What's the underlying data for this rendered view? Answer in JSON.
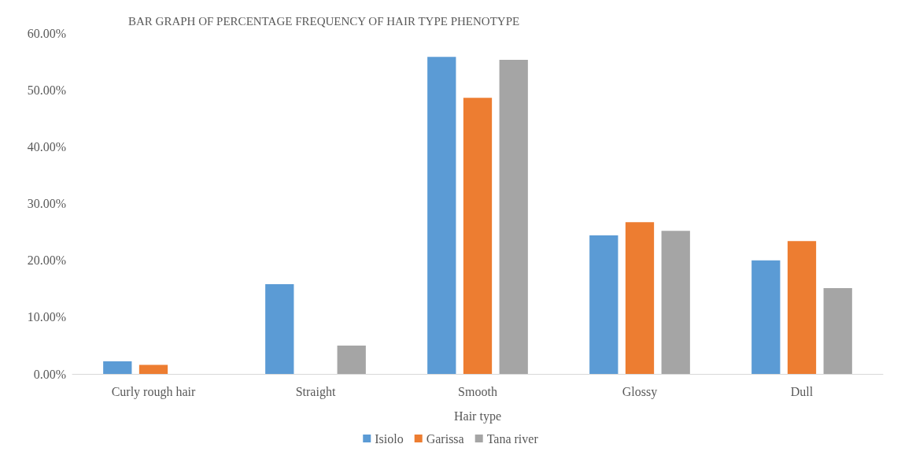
{
  "chart_data": {
    "type": "bar",
    "title": "BAR GRAPH OF PERCENTAGE FREQUENCY OF HAIR TYPE PHENOTYPE",
    "xlabel": "Hair type",
    "categories": [
      "Curly rough hair",
      "Straight",
      "Smooth",
      "Glossy",
      "Dull"
    ],
    "series": [
      {
        "name": "Isiolo",
        "color": "#5b9bd5",
        "values": [
          2.2,
          15.8,
          55.8,
          24.4,
          20.0
        ]
      },
      {
        "name": "Garissa",
        "color": "#ed7d31",
        "values": [
          1.6,
          0,
          48.6,
          26.7,
          23.4
        ]
      },
      {
        "name": "Tana river",
        "color": "#a5a5a5",
        "values": [
          0,
          5.0,
          55.3,
          25.2,
          15.1
        ]
      }
    ],
    "ylim": [
      0,
      60
    ],
    "yticks": [
      {
        "value": 0,
        "label": "0.00%"
      },
      {
        "value": 10,
        "label": "10.00%"
      },
      {
        "value": 20,
        "label": "20.00%"
      },
      {
        "value": 30,
        "label": "30.00%"
      },
      {
        "value": 40,
        "label": "40.00%"
      },
      {
        "value": 50,
        "label": "50.00%"
      },
      {
        "value": 60,
        "label": "60.00%"
      }
    ],
    "grid": false,
    "legend": "bottom"
  }
}
